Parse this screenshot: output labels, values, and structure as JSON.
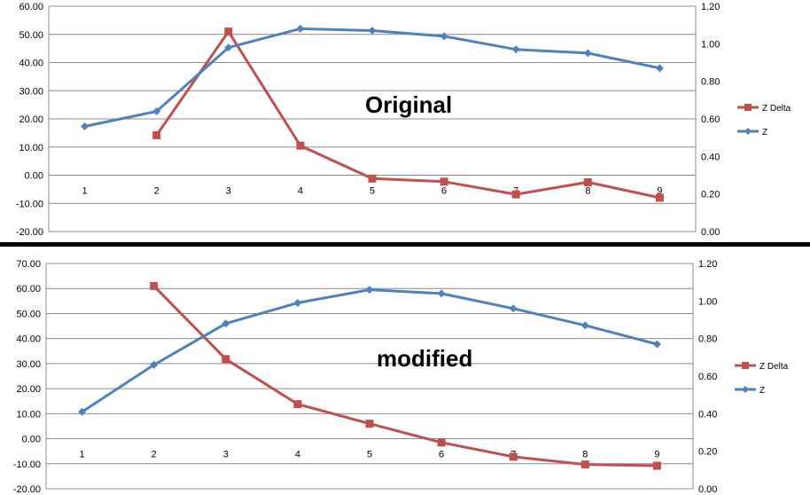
{
  "chart_data": [
    {
      "type": "line",
      "annotation": "Original",
      "categories": [
        "1",
        "2",
        "3",
        "4",
        "5",
        "6",
        "7",
        "8",
        "9"
      ],
      "y_left": {
        "ylim": [
          -20,
          60
        ],
        "ticks": [
          "-20.00",
          "-10.00",
          "0.00",
          "10.00",
          "20.00",
          "30.00",
          "40.00",
          "50.00",
          "60.00"
        ]
      },
      "y_right": {
        "ylim": [
          0,
          1.2
        ],
        "ticks": [
          "0.00",
          "0.20",
          "0.40",
          "0.60",
          "0.80",
          "1.00",
          "1.20"
        ]
      },
      "legend_position": "right",
      "series": [
        {
          "name": "Z Delta",
          "axis": "left",
          "color": "#c0504d",
          "marker": "square",
          "values": [
            null,
            14.2,
            51.0,
            10.5,
            -1.2,
            -2.3,
            -6.8,
            -2.5,
            -8.0
          ]
        },
        {
          "name": "Z",
          "axis": "right",
          "color": "#4f81bd",
          "marker": "diamond",
          "values": [
            0.56,
            0.64,
            0.98,
            1.08,
            1.07,
            1.04,
            0.97,
            0.95,
            0.87
          ]
        }
      ]
    },
    {
      "type": "line",
      "annotation": "modified",
      "categories": [
        "1",
        "2",
        "3",
        "4",
        "5",
        "6",
        "7",
        "8",
        "9"
      ],
      "y_left": {
        "ylim": [
          -20,
          70
        ],
        "ticks": [
          "-20.00",
          "-10.00",
          "0.00",
          "10.00",
          "20.00",
          "30.00",
          "40.00",
          "50.00",
          "60.00",
          "70.00"
        ]
      },
      "y_right": {
        "ylim": [
          0,
          1.2
        ],
        "ticks": [
          "0.00",
          "0.20",
          "0.40",
          "0.60",
          "0.80",
          "1.00",
          "1.20"
        ]
      },
      "legend_position": "right",
      "series": [
        {
          "name": "Z Delta",
          "axis": "left",
          "color": "#c0504d",
          "marker": "square",
          "values": [
            null,
            61.0,
            31.8,
            13.8,
            6.0,
            -1.5,
            -7.2,
            -10.3,
            -10.8
          ]
        },
        {
          "name": "Z",
          "axis": "right",
          "color": "#4f81bd",
          "marker": "diamond",
          "values": [
            0.41,
            0.66,
            0.88,
            0.99,
            1.06,
            1.04,
            0.96,
            0.87,
            0.77
          ]
        }
      ]
    }
  ]
}
